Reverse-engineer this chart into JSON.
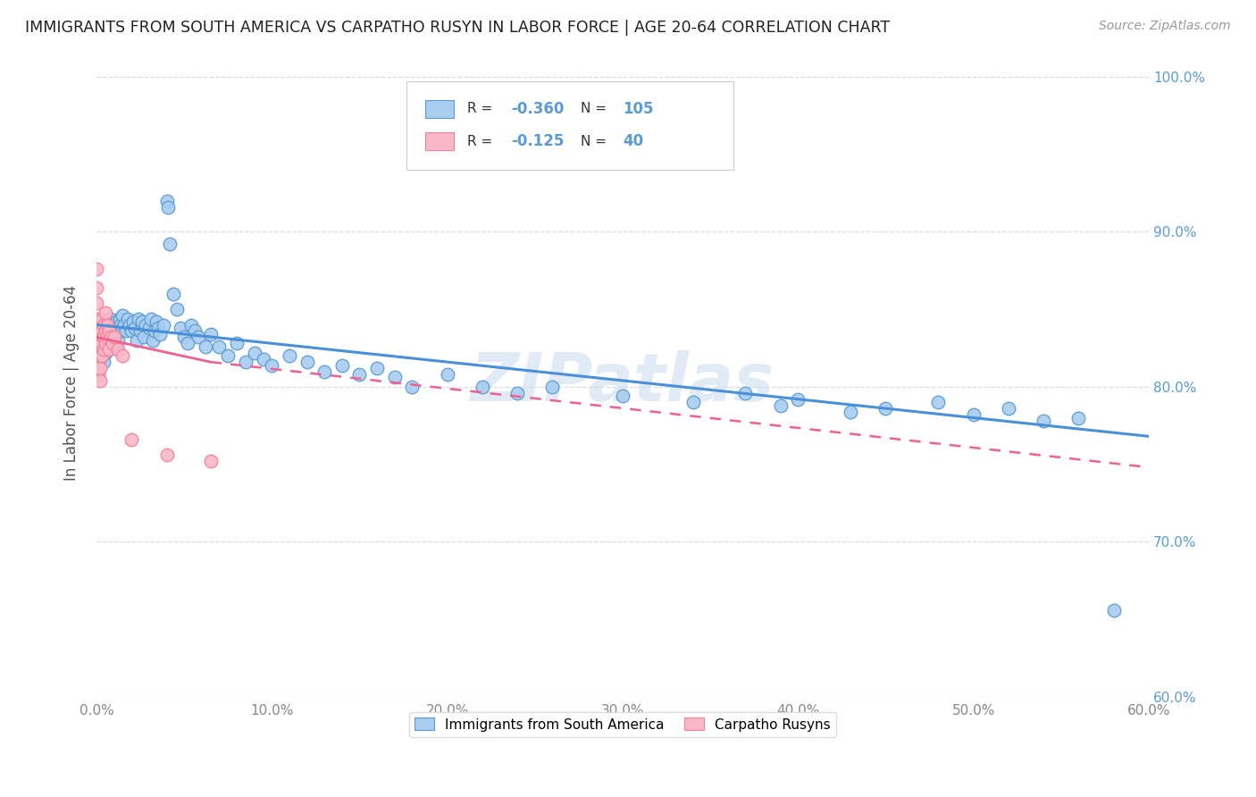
{
  "title": "IMMIGRANTS FROM SOUTH AMERICA VS CARPATHO RUSYN IN LABOR FORCE | AGE 20-64 CORRELATION CHART",
  "source": "Source: ZipAtlas.com",
  "ylabel": "In Labor Force | Age 20-64",
  "xlim": [
    0.0,
    0.6
  ],
  "ylim": [
    0.6,
    1.005
  ],
  "xticks": [
    0.0,
    0.1,
    0.2,
    0.3,
    0.4,
    0.5,
    0.6
  ],
  "xticklabels": [
    "0.0%",
    "10.0%",
    "20.0%",
    "30.0%",
    "40.0%",
    "50.0%",
    "60.0%"
  ],
  "yticks": [
    0.6,
    0.7,
    0.8,
    0.9,
    1.0
  ],
  "yticklabels": [
    "60.0%",
    "70.0%",
    "80.0%",
    "90.0%",
    "100.0%"
  ],
  "blue_color": "#A8CDEF",
  "pink_color": "#F9B8C8",
  "blue_edge_color": "#5B9BD5",
  "pink_edge_color": "#F48098",
  "blue_line_color": "#4A90D9",
  "pink_line_color": "#F06090",
  "accent_color": "#5B9BD5",
  "background_color": "#FFFFFF",
  "grid_color": "#DCDCE8",
  "title_color": "#222222",
  "axis_label_color": "#555555",
  "watermark": "ZIPatlas",
  "legend_label_blue": "Immigrants from South America",
  "legend_label_pink": "Carpatho Rusyns",
  "R_blue": -0.36,
  "N_blue": 105,
  "R_pink": -0.125,
  "N_pink": 40,
  "blue_line_x0": 0.0,
  "blue_line_y0": 0.84,
  "blue_line_x1": 0.6,
  "blue_line_y1": 0.768,
  "pink_line_solid_x0": 0.0,
  "pink_line_solid_y0": 0.832,
  "pink_line_solid_x1": 0.065,
  "pink_line_solid_y1": 0.816,
  "pink_line_dash_x0": 0.065,
  "pink_line_dash_y0": 0.816,
  "pink_line_dash_x1": 0.6,
  "pink_line_dash_y1": 0.748,
  "blue_scatter_x": [
    0.001,
    0.001,
    0.002,
    0.002,
    0.002,
    0.003,
    0.003,
    0.003,
    0.003,
    0.004,
    0.004,
    0.004,
    0.004,
    0.005,
    0.005,
    0.005,
    0.006,
    0.006,
    0.006,
    0.007,
    0.007,
    0.007,
    0.007,
    0.008,
    0.008,
    0.008,
    0.009,
    0.009,
    0.01,
    0.01,
    0.011,
    0.011,
    0.012,
    0.012,
    0.013,
    0.013,
    0.014,
    0.015,
    0.015,
    0.016,
    0.017,
    0.018,
    0.019,
    0.02,
    0.021,
    0.022,
    0.023,
    0.024,
    0.025,
    0.026,
    0.027,
    0.028,
    0.03,
    0.031,
    0.032,
    0.033,
    0.034,
    0.035,
    0.036,
    0.038,
    0.04,
    0.041,
    0.042,
    0.044,
    0.046,
    0.048,
    0.05,
    0.052,
    0.054,
    0.056,
    0.058,
    0.062,
    0.065,
    0.07,
    0.075,
    0.08,
    0.085,
    0.09,
    0.095,
    0.1,
    0.11,
    0.12,
    0.13,
    0.14,
    0.15,
    0.16,
    0.17,
    0.18,
    0.2,
    0.22,
    0.24,
    0.26,
    0.3,
    0.34,
    0.37,
    0.39,
    0.4,
    0.43,
    0.45,
    0.48,
    0.5,
    0.52,
    0.54,
    0.56,
    0.58
  ],
  "blue_scatter_y": [
    0.838,
    0.828,
    0.83,
    0.842,
    0.818,
    0.836,
    0.828,
    0.82,
    0.834,
    0.84,
    0.832,
    0.824,
    0.816,
    0.838,
    0.83,
    0.822,
    0.842,
    0.834,
    0.826,
    0.84,
    0.832,
    0.824,
    0.838,
    0.836,
    0.828,
    0.844,
    0.832,
    0.84,
    0.836,
    0.828,
    0.842,
    0.834,
    0.838,
    0.83,
    0.844,
    0.836,
    0.84,
    0.846,
    0.838,
    0.84,
    0.836,
    0.844,
    0.84,
    0.836,
    0.842,
    0.838,
    0.83,
    0.844,
    0.836,
    0.842,
    0.832,
    0.84,
    0.838,
    0.844,
    0.83,
    0.836,
    0.842,
    0.838,
    0.834,
    0.84,
    0.92,
    0.916,
    0.892,
    0.86,
    0.85,
    0.838,
    0.832,
    0.828,
    0.84,
    0.836,
    0.832,
    0.826,
    0.834,
    0.826,
    0.82,
    0.828,
    0.816,
    0.822,
    0.818,
    0.814,
    0.82,
    0.816,
    0.81,
    0.814,
    0.808,
    0.812,
    0.806,
    0.8,
    0.808,
    0.8,
    0.796,
    0.8,
    0.794,
    0.79,
    0.796,
    0.788,
    0.792,
    0.784,
    0.786,
    0.79,
    0.782,
    0.786,
    0.778,
    0.78,
    0.656
  ],
  "pink_scatter_x": [
    0.0,
    0.0,
    0.0,
    0.0,
    0.0,
    0.0,
    0.0,
    0.0,
    0.001,
    0.001,
    0.001,
    0.001,
    0.001,
    0.002,
    0.002,
    0.002,
    0.002,
    0.002,
    0.003,
    0.003,
    0.003,
    0.003,
    0.004,
    0.004,
    0.004,
    0.005,
    0.005,
    0.005,
    0.006,
    0.006,
    0.007,
    0.007,
    0.008,
    0.009,
    0.01,
    0.012,
    0.015,
    0.02,
    0.04,
    0.065
  ],
  "pink_scatter_y": [
    0.876,
    0.864,
    0.854,
    0.844,
    0.836,
    0.828,
    0.82,
    0.812,
    0.84,
    0.832,
    0.824,
    0.816,
    0.808,
    0.836,
    0.828,
    0.82,
    0.812,
    0.804,
    0.844,
    0.836,
    0.828,
    0.82,
    0.84,
    0.832,
    0.824,
    0.848,
    0.836,
    0.828,
    0.84,
    0.832,
    0.836,
    0.824,
    0.832,
    0.828,
    0.832,
    0.824,
    0.82,
    0.766,
    0.756,
    0.752
  ]
}
